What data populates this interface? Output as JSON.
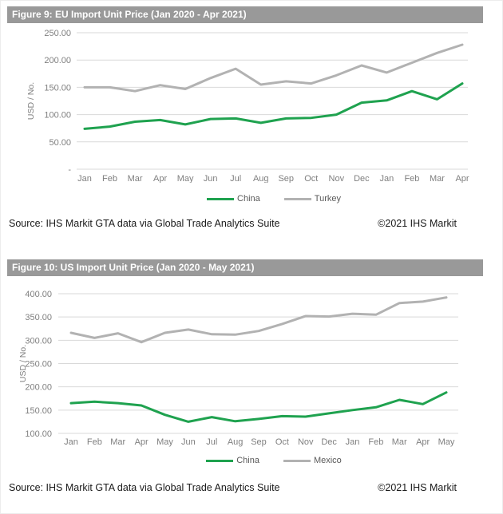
{
  "colors": {
    "header_bar": "#999999",
    "grid": "#d9d9d9",
    "axis_text": "#7f7f7f",
    "china_green": "#1fa24f",
    "partner_gray": "#b2b2b2",
    "legend_text": "#595959",
    "source_text": "#1a1a1a"
  },
  "source": {
    "text": "Source: IHS Markit GTA data via Global Trade Analytics Suite",
    "copyright": "©2021 IHS Markit"
  },
  "chart_data": [
    {
      "type": "line",
      "title": "Figure 9: EU Import Unit Price (Jan 2020 - Apr 2021)",
      "ylabel": "USD / No.",
      "xlabel": "",
      "ylim": [
        0,
        250
      ],
      "yticks": [
        250,
        200,
        150,
        100,
        50,
        0
      ],
      "ytick_labels": [
        "250.00",
        "200.00",
        "150.00",
        "100.00",
        "50.00",
        "-"
      ],
      "grid": "horizontal",
      "legend_position": "bottom",
      "categories": [
        "Jan",
        "Feb",
        "Mar",
        "Apr",
        "May",
        "Jun",
        "Jul",
        "Aug",
        "Sep",
        "Oct",
        "Nov",
        "Dec",
        "Jan",
        "Feb",
        "Mar",
        "Apr"
      ],
      "series": [
        {
          "name": "China",
          "color": "#1fa24f",
          "values": [
            74,
            78,
            87,
            90,
            82,
            92,
            93,
            85,
            93,
            94,
            100,
            122,
            126,
            143,
            128,
            157
          ]
        },
        {
          "name": "Turkey",
          "color": "#b2b2b2",
          "values": [
            150,
            150,
            143,
            154,
            147,
            167,
            184,
            155,
            161,
            157,
            172,
            190,
            177,
            195,
            213,
            228
          ]
        }
      ]
    },
    {
      "type": "line",
      "title": "Figure 10: US Import Unit Price (Jan 2020 - May 2021)",
      "ylabel": "USD / No.",
      "xlabel": "",
      "ylim": [
        100,
        400
      ],
      "yticks": [
        400,
        350,
        300,
        250,
        200,
        150,
        100
      ],
      "ytick_labels": [
        "400.00",
        "350.00",
        "300.00",
        "250.00",
        "200.00",
        "150.00",
        "100.00"
      ],
      "grid": "horizontal",
      "legend_position": "bottom",
      "categories": [
        "Jan",
        "Feb",
        "Mar",
        "Apr",
        "May",
        "Jun",
        "Jul",
        "Aug",
        "Sep",
        "Oct",
        "Nov",
        "Dec",
        "Jan",
        "Feb",
        "Mar",
        "Apr",
        "May"
      ],
      "series": [
        {
          "name": "China",
          "color": "#1fa24f",
          "values": [
            165,
            168,
            165,
            160,
            140,
            125,
            135,
            126,
            131,
            137,
            136,
            143,
            150,
            156,
            172,
            163,
            188
          ]
        },
        {
          "name": "Mexico",
          "color": "#b2b2b2",
          "values": [
            316,
            305,
            315,
            296,
            316,
            323,
            313,
            312,
            320,
            335,
            352,
            351,
            357,
            355,
            380,
            383,
            392
          ]
        }
      ]
    }
  ]
}
